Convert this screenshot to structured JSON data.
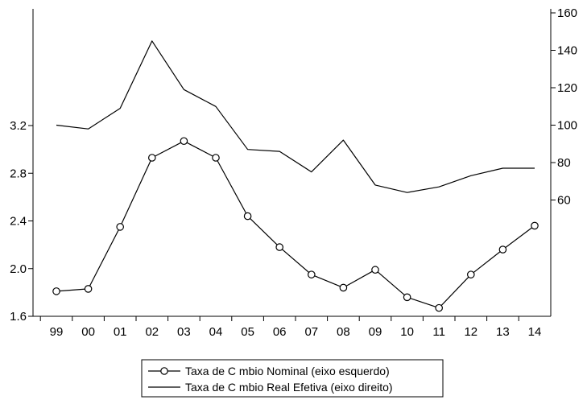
{
  "chart_data": {
    "type": "line",
    "title": "",
    "x": [
      "99",
      "00",
      "01",
      "02",
      "03",
      "04",
      "05",
      "06",
      "07",
      "08",
      "09",
      "10",
      "11",
      "12",
      "13",
      "14"
    ],
    "left_axis": {
      "ylim": [
        1.6,
        3.2
      ],
      "ticks": [
        "1.6",
        "2.0",
        "2.4",
        "2.8",
        "3.2"
      ]
    },
    "right_axis": {
      "ticks": [
        "60",
        "80",
        "100",
        "120",
        "140",
        "160"
      ]
    },
    "series": [
      {
        "name": "Taxa de C  mbio Nominal (eixo esquerdo)",
        "axis": "left",
        "marker": "circle",
        "values": [
          1.81,
          1.83,
          2.35,
          2.93,
          3.07,
          2.93,
          2.44,
          2.18,
          1.95,
          1.84,
          1.99,
          1.76,
          1.67,
          1.95,
          2.16,
          2.36
        ]
      },
      {
        "name": "Taxa de C  mbio Real Efetiva (eixo direito)",
        "axis": "right",
        "marker": "none",
        "values": [
          100,
          98,
          109,
          145,
          119,
          110,
          87,
          86,
          75,
          92,
          68,
          64,
          67,
          73,
          77,
          77
        ]
      }
    ],
    "grid": false,
    "legend_position": "bottom-center",
    "line_color": "#000000"
  }
}
